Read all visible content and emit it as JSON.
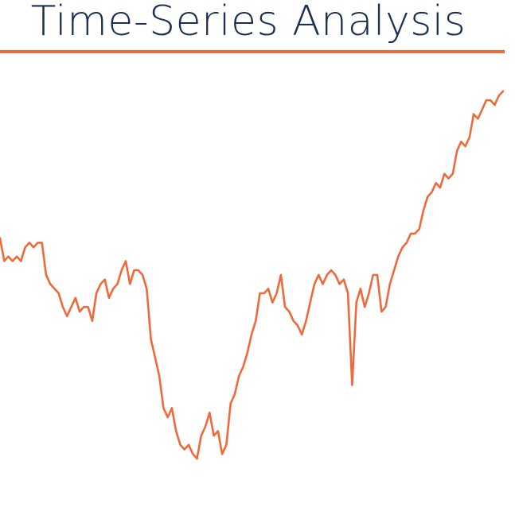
{
  "page": {
    "title": "Time-Series Analysis",
    "accent_color": "#ef6a3a",
    "title_color": "#1b2f52"
  },
  "chart_data": {
    "type": "line",
    "title": "Time-Series Analysis",
    "xlabel": "",
    "ylabel": "",
    "grid": false,
    "legend": "none",
    "ylim": [
      0,
      100
    ],
    "series": [
      {
        "color": "#ef6a3a",
        "values": [
          62,
          57,
          58,
          57,
          58,
          57,
          60,
          61,
          60,
          61,
          61,
          54,
          52,
          51,
          50,
          47,
          45,
          47,
          49,
          46,
          47,
          47,
          44,
          50,
          52,
          53,
          49,
          51,
          52,
          55,
          57,
          52,
          55,
          55,
          54,
          51,
          40,
          36,
          32,
          25,
          23,
          25,
          20,
          17,
          16,
          17,
          15,
          14,
          19,
          21,
          24,
          19,
          20,
          15,
          17,
          26,
          28,
          32,
          34,
          37,
          41,
          44,
          50,
          50,
          51,
          48,
          50,
          54,
          47,
          46,
          44,
          43,
          41,
          44,
          48,
          52,
          54,
          52,
          54,
          55,
          54,
          52,
          53,
          50,
          30,
          48,
          51,
          47,
          50,
          54,
          54,
          46,
          47,
          52,
          55,
          58,
          60,
          61,
          63,
          63,
          64,
          68,
          71,
          72,
          74,
          73,
          76,
          75,
          76,
          81,
          83,
          82,
          84,
          89,
          88,
          90,
          92,
          92,
          91,
          93,
          94
        ]
      }
    ]
  }
}
